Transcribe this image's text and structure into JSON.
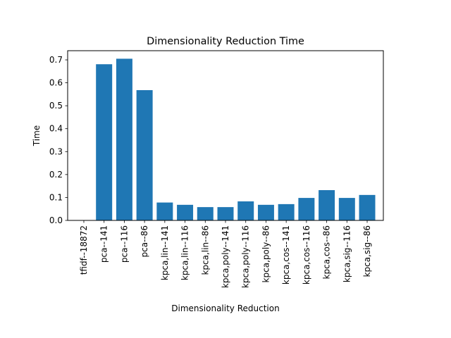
{
  "chart_data": {
    "type": "bar",
    "title": "Dimensionality Reduction Time",
    "xlabel": "Dimensionality Reduction",
    "ylabel": "Time",
    "categories": [
      "tfidf--18872",
      "pca--141",
      "pca--116",
      "pca--86",
      "kpca,lin--141",
      "kpca,lin--116",
      "kpca,lin--86",
      "kpca,poly--141",
      "kpca,poly--116",
      "kpca,poly--86",
      "kpca,cos--141",
      "kpca,cos--116",
      "kpca,cos--86",
      "kpca,sig--116",
      "kpca,sig--86"
    ],
    "values": [
      0.0,
      0.681,
      0.705,
      0.568,
      0.078,
      0.068,
      0.058,
      0.058,
      0.083,
      0.068,
      0.071,
      0.098,
      0.132,
      0.098,
      0.111
    ],
    "ylim": [
      0,
      0.74
    ],
    "yticks": [
      0.0,
      0.1,
      0.2,
      0.3,
      0.4,
      0.5,
      0.6,
      0.7
    ],
    "ytick_labels": [
      "0.0",
      "0.1",
      "0.2",
      "0.3",
      "0.4",
      "0.5",
      "0.6",
      "0.7"
    ],
    "bar_color": "#1f77b4",
    "grid": false,
    "legend": "none"
  }
}
